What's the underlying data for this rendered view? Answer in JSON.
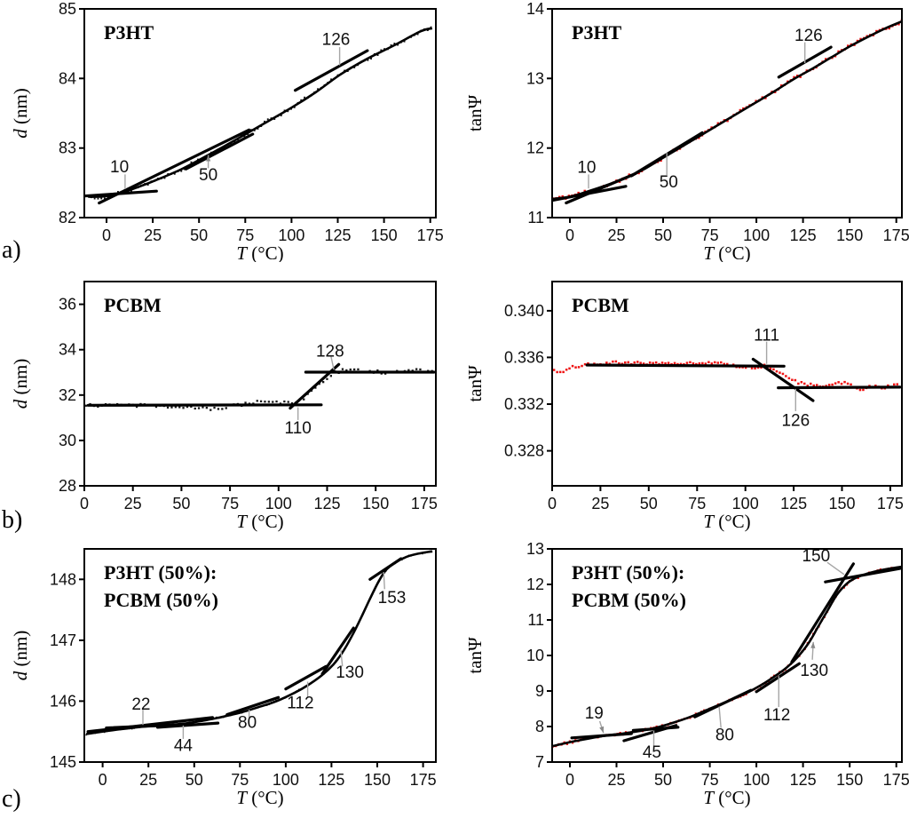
{
  "figure": {
    "row_labels": [
      {
        "text": "a)"
      },
      {
        "text": "b)"
      },
      {
        "text": "c)"
      }
    ]
  },
  "colors": {
    "black_series": "#161616",
    "red_series": "#ee1212",
    "fit_line": "#000000",
    "leader": "#a6a6a6",
    "frame": "#000000"
  },
  "chart_data": [
    {
      "slot": "a-left",
      "type": "scatter",
      "title_lines": [
        "P3HT"
      ],
      "xlabel": {
        "italic": "T",
        "rest": " (°C)"
      },
      "ylabel": {
        "italic": "d",
        "rest": " (nm)"
      },
      "xlim": [
        -12,
        178
      ],
      "ylim": [
        82,
        85
      ],
      "xticks": [
        0,
        25,
        50,
        75,
        100,
        125,
        150,
        175
      ],
      "yticks": [
        82,
        83,
        84,
        85
      ],
      "ytick_decimals": 0,
      "series_color": "#161616",
      "marker_px": 1.9,
      "sample_step": 1.8,
      "noise": 0.03,
      "draw_fit_curve": true,
      "anchors": [
        [
          -10,
          82.3
        ],
        [
          -4,
          82.3
        ],
        [
          0,
          82.31
        ],
        [
          8,
          82.36
        ],
        [
          15,
          82.42
        ],
        [
          25,
          82.52
        ],
        [
          40,
          82.69
        ],
        [
          55,
          82.9
        ],
        [
          70,
          83.12
        ],
        [
          85,
          83.35
        ],
        [
          100,
          83.58
        ],
        [
          113,
          83.8
        ],
        [
          126,
          84.05
        ],
        [
          140,
          84.27
        ],
        [
          155,
          84.47
        ],
        [
          170,
          84.68
        ],
        [
          176,
          84.72
        ]
      ],
      "fit_segments": [
        [
          -12,
          82.31,
          27,
          82.38
        ],
        [
          -4,
          82.21,
          77,
          83.26
        ],
        [
          43,
          82.7,
          79,
          83.2
        ],
        [
          102,
          83.83,
          141,
          84.4
        ]
      ],
      "annotations": [
        {
          "label": "10",
          "tx": 7,
          "ty": 82.73,
          "leader": [
            10,
            82.62,
            10,
            82.41
          ],
          "arrow": false
        },
        {
          "label": "50",
          "tx": 55,
          "ty": 82.61,
          "leader": [
            55,
            82.71,
            55,
            82.9
          ],
          "arrow": true
        },
        {
          "label": "126",
          "tx": 124,
          "ty": 84.56,
          "leader": [
            126,
            84.45,
            126,
            84.19
          ],
          "arrow": false
        }
      ]
    },
    {
      "slot": "a-right",
      "type": "scatter",
      "title_lines": [
        "P3HT"
      ],
      "xlabel": {
        "italic": "T",
        "rest": " (°C)"
      },
      "ylabel": {
        "italic": "",
        "rest": "tanΨ"
      },
      "xlim": [
        -9.5,
        178
      ],
      "ylim": [
        11,
        14
      ],
      "xticks": [
        0,
        25,
        50,
        75,
        100,
        125,
        150,
        175
      ],
      "yticks": [
        11,
        12,
        13,
        14
      ],
      "ytick_decimals": 0,
      "series_color": "#ee1212",
      "marker_px": 2.5,
      "sample_step": 1.7,
      "noise": 0.025,
      "draw_fit_curve": true,
      "anchors": [
        [
          -9,
          11.27
        ],
        [
          0,
          11.3
        ],
        [
          10,
          11.38
        ],
        [
          20,
          11.47
        ],
        [
          30,
          11.57
        ],
        [
          40,
          11.7
        ],
        [
          50,
          11.86
        ],
        [
          60,
          12.02
        ],
        [
          70,
          12.18
        ],
        [
          80,
          12.34
        ],
        [
          90,
          12.5
        ],
        [
          100,
          12.66
        ],
        [
          110,
          12.82
        ],
        [
          120,
          12.99
        ],
        [
          130,
          13.14
        ],
        [
          140,
          13.3
        ],
        [
          150,
          13.46
        ],
        [
          160,
          13.6
        ],
        [
          170,
          13.73
        ],
        [
          178,
          13.82
        ]
      ],
      "fit_segments": [
        [
          -9,
          11.25,
          30,
          11.45
        ],
        [
          -2,
          11.21,
          35,
          11.63
        ],
        [
          33,
          11.6,
          71,
          12.22
        ],
        [
          112,
          13.02,
          140,
          13.45
        ]
      ],
      "annotations": [
        {
          "label": "10",
          "tx": 9,
          "ty": 11.72,
          "leader": [
            10,
            11.62,
            10,
            11.42
          ],
          "arrow": false
        },
        {
          "label": "50",
          "tx": 53,
          "ty": 11.51,
          "leader": [
            52,
            11.61,
            52,
            11.93
          ],
          "arrow": false
        },
        {
          "label": "126",
          "tx": 128,
          "ty": 13.62,
          "leader": [
            126,
            13.52,
            126,
            13.22
          ],
          "arrow": false
        }
      ]
    },
    {
      "slot": "b-left",
      "type": "scatter",
      "title_lines": [
        "PCBM"
      ],
      "xlabel": {
        "italic": "T",
        "rest": " (°C)"
      },
      "ylabel": {
        "italic": "d",
        "rest": " (nm)"
      },
      "xlim": [
        0,
        181
      ],
      "ylim": [
        28,
        37
      ],
      "xticks": [
        0,
        25,
        50,
        75,
        100,
        125,
        150,
        175
      ],
      "yticks": [
        28,
        30,
        32,
        34,
        36
      ],
      "ytick_decimals": 0,
      "series_color": "#161616",
      "marker_px": 2.3,
      "sample_step": 2.0,
      "noise": 0.07,
      "draw_fit_curve": false,
      "anchors": [
        [
          1,
          31.55
        ],
        [
          30,
          31.53
        ],
        [
          50,
          31.5
        ],
        [
          58,
          31.42
        ],
        [
          68,
          31.4
        ],
        [
          78,
          31.55
        ],
        [
          88,
          31.68
        ],
        [
          97,
          31.72
        ],
        [
          104,
          31.65
        ],
        [
          108,
          31.62
        ],
        [
          113,
          31.85
        ],
        [
          118,
          32.25
        ],
        [
          123,
          32.6
        ],
        [
          128,
          32.95
        ],
        [
          133,
          33.08
        ],
        [
          140,
          33.1
        ],
        [
          148,
          33.05
        ],
        [
          155,
          32.97
        ],
        [
          162,
          33.06
        ],
        [
          170,
          33.08
        ],
        [
          179,
          33.02
        ]
      ],
      "fit_segments": [
        [
          2,
          31.55,
          122,
          31.57
        ],
        [
          106,
          31.42,
          131,
          33.35
        ],
        [
          114,
          33.01,
          180,
          33.01
        ]
      ],
      "annotations": [
        {
          "label": "128",
          "tx": 126.5,
          "ty": 33.92,
          "leader": [
            127,
            33.7,
            128.5,
            33.12
          ],
          "arrow": false
        },
        {
          "label": "110",
          "tx": 110,
          "ty": 30.55,
          "leader": [
            110,
            30.9,
            110,
            31.46
          ],
          "arrow": false
        }
      ]
    },
    {
      "slot": "b-right",
      "type": "scatter",
      "title_lines": [
        "PCBM"
      ],
      "xlabel": {
        "italic": "T",
        "rest": " (°C)"
      },
      "ylabel": {
        "italic": "",
        "rest": "tanΨ"
      },
      "xlim": [
        0,
        181
      ],
      "ylim": [
        0.325,
        0.3425
      ],
      "xticks": [
        0,
        25,
        50,
        75,
        100,
        125,
        150,
        175
      ],
      "yticks": [
        0.328,
        0.332,
        0.336,
        0.34
      ],
      "ytick_decimals": 3,
      "series_color": "#ee1212",
      "marker_px": 2.5,
      "sample_step": 1.6,
      "noise": 0.00013,
      "draw_fit_curve": false,
      "anchors": [
        [
          1,
          0.33485
        ],
        [
          4,
          0.3347
        ],
        [
          8,
          0.335
        ],
        [
          12,
          0.3352
        ],
        [
          18,
          0.33535
        ],
        [
          25,
          0.33545
        ],
        [
          35,
          0.33555
        ],
        [
          45,
          0.3355
        ],
        [
          55,
          0.3355
        ],
        [
          65,
          0.33555
        ],
        [
          75,
          0.33545
        ],
        [
          82,
          0.3356
        ],
        [
          88,
          0.3355
        ],
        [
          94,
          0.33525
        ],
        [
          100,
          0.3352
        ],
        [
          106,
          0.33515
        ],
        [
          110,
          0.33525
        ],
        [
          114,
          0.33495
        ],
        [
          118,
          0.33465
        ],
        [
          122,
          0.33425
        ],
        [
          126,
          0.33395
        ],
        [
          130,
          0.3337
        ],
        [
          135,
          0.33365
        ],
        [
          142,
          0.3336
        ],
        [
          148,
          0.33375
        ],
        [
          152,
          0.33395
        ],
        [
          156,
          0.3334
        ],
        [
          160,
          0.3333
        ],
        [
          165,
          0.3335
        ],
        [
          170,
          0.3334
        ],
        [
          175,
          0.33355
        ],
        [
          179,
          0.3336
        ]
      ],
      "fit_segments": [
        [
          18,
          0.33535,
          120,
          0.33525
        ],
        [
          104,
          0.33585,
          135,
          0.3323
        ],
        [
          117,
          0.3334,
          180,
          0.33345
        ]
      ],
      "annotations": [
        {
          "label": "111",
          "tx": 111,
          "ty": 0.3379,
          "leader": [
            111,
            0.33735,
            111,
            0.33545
          ],
          "arrow": false
        },
        {
          "label": "126",
          "tx": 126,
          "ty": 0.3306,
          "leader": [
            126,
            0.3314,
            126,
            0.3333
          ],
          "arrow": false
        }
      ]
    },
    {
      "slot": "c-left",
      "type": "scatter",
      "title_lines": [
        "P3HT (50%):",
        "PCBM (50%)"
      ],
      "xlabel": {
        "italic": "T",
        "rest": " (°C)"
      },
      "ylabel": {
        "italic": "d",
        "rest": " (nm)"
      },
      "xlim": [
        -10,
        182
      ],
      "ylim": [
        145,
        148.5
      ],
      "xticks": [
        0,
        25,
        50,
        75,
        100,
        125,
        150,
        175
      ],
      "yticks": [
        145,
        146,
        147,
        148
      ],
      "ytick_decimals": 0,
      "series_color": "#161616",
      "marker_px": 1.6,
      "sample_step": 1.25,
      "noise": 0.014,
      "draw_fit_curve": true,
      "anchors": [
        [
          -9,
          145.46
        ],
        [
          0,
          145.5
        ],
        [
          10,
          145.54
        ],
        [
          22,
          145.58
        ],
        [
          32,
          145.6
        ],
        [
          44,
          145.63
        ],
        [
          55,
          145.68
        ],
        [
          65,
          145.74
        ],
        [
          75,
          145.81
        ],
        [
          85,
          145.9
        ],
        [
          95,
          146.0
        ],
        [
          105,
          146.14
        ],
        [
          112,
          146.26
        ],
        [
          120,
          146.43
        ],
        [
          126,
          146.6
        ],
        [
          131,
          146.8
        ],
        [
          136,
          147.06
        ],
        [
          141,
          147.36
        ],
        [
          146,
          147.68
        ],
        [
          151,
          147.98
        ],
        [
          155,
          148.16
        ],
        [
          160,
          148.28
        ],
        [
          166,
          148.37
        ],
        [
          172,
          148.42
        ],
        [
          180,
          148.46
        ]
      ],
      "fit_segments": [
        [
          -8,
          145.5,
          60,
          145.73
        ],
        [
          2,
          145.56,
          47,
          145.62
        ],
        [
          30,
          145.57,
          63,
          145.64
        ],
        [
          68,
          145.78,
          96,
          146.06
        ],
        [
          100,
          146.2,
          122,
          146.57
        ],
        [
          120,
          146.45,
          137,
          147.2
        ],
        [
          146,
          148.0,
          163,
          148.34
        ]
      ],
      "annotations": [
        {
          "label": "22",
          "tx": 21,
          "ty": 145.95,
          "leader": [
            22,
            145.86,
            22,
            145.61
          ],
          "arrow": false
        },
        {
          "label": "44",
          "tx": 44,
          "ty": 145.27,
          "leader": [
            44,
            145.38,
            44,
            145.6
          ],
          "arrow": false
        },
        {
          "label": "80",
          "tx": 79,
          "ty": 145.65,
          "leader": [
            80,
            145.73,
            80,
            145.86
          ],
          "arrow": false
        },
        {
          "label": "112",
          "tx": 108,
          "ty": 145.97,
          "leader": [
            112,
            146.05,
            112,
            146.32
          ],
          "arrow": false
        },
        {
          "label": "130",
          "tx": 135,
          "ty": 146.47,
          "leader": [
            131,
            146.57,
            130,
            146.85
          ],
          "arrow": false
        },
        {
          "label": "153",
          "tx": 158,
          "ty": 147.7,
          "leader": [
            154,
            147.84,
            153.5,
            148.12
          ],
          "arrow": false
        }
      ]
    },
    {
      "slot": "c-right",
      "type": "scatter",
      "title_lines": [
        "P3HT (50%):",
        "PCBM (50%)"
      ],
      "xlabel": {
        "italic": "T",
        "rest": " (°C)"
      },
      "ylabel": {
        "italic": "",
        "rest": "tanΨ"
      },
      "xlim": [
        -9.5,
        178
      ],
      "ylim": [
        7,
        13
      ],
      "xticks": [
        0,
        25,
        50,
        75,
        100,
        125,
        150,
        175
      ],
      "yticks": [
        7,
        8,
        9,
        10,
        11,
        12,
        13
      ],
      "ytick_decimals": 0,
      "series_color": "#ee1212",
      "marker_px": 2.3,
      "sample_step": 1.5,
      "noise": 0.035,
      "draw_fit_curve": true,
      "anchors": [
        [
          -9,
          7.45
        ],
        [
          0,
          7.56
        ],
        [
          10,
          7.66
        ],
        [
          19,
          7.74
        ],
        [
          28,
          7.8
        ],
        [
          38,
          7.88
        ],
        [
          45,
          7.95
        ],
        [
          55,
          8.1
        ],
        [
          65,
          8.28
        ],
        [
          75,
          8.5
        ],
        [
          85,
          8.72
        ],
        [
          95,
          8.95
        ],
        [
          103,
          9.18
        ],
        [
          110,
          9.42
        ],
        [
          116,
          9.65
        ],
        [
          122,
          9.95
        ],
        [
          128,
          10.35
        ],
        [
          133,
          10.8
        ],
        [
          138,
          11.25
        ],
        [
          143,
          11.7
        ],
        [
          148,
          12.0
        ],
        [
          152,
          12.15
        ],
        [
          158,
          12.28
        ],
        [
          165,
          12.38
        ],
        [
          172,
          12.45
        ],
        [
          178,
          12.5
        ]
      ],
      "fit_segments": [
        [
          1,
          7.68,
          33,
          7.8
        ],
        [
          29,
          7.6,
          57,
          8.03
        ],
        [
          34,
          7.89,
          58,
          7.98
        ],
        [
          67,
          8.27,
          97,
          9.02
        ],
        [
          100,
          8.98,
          123,
          9.77
        ],
        [
          119,
          9.82,
          152,
          12.58
        ],
        [
          137,
          12.07,
          177,
          12.45
        ]
      ],
      "annotations": [
        {
          "label": "19",
          "tx": 13,
          "ty": 8.37,
          "leader": [
            16,
            8.15,
            18,
            7.82
          ],
          "arrow": true
        },
        {
          "label": "45",
          "tx": 44,
          "ty": 7.28,
          "leader": [
            45,
            7.44,
            45,
            7.88
          ],
          "arrow": false
        },
        {
          "label": "80",
          "tx": 83,
          "ty": 7.76,
          "leader": [
            81,
            7.96,
            80,
            8.56
          ],
          "arrow": false
        },
        {
          "label": "112",
          "tx": 111,
          "ty": 8.32,
          "leader": [
            112,
            8.55,
            112,
            9.42
          ],
          "arrow": false
        },
        {
          "label": "130",
          "tx": 131,
          "ty": 9.58,
          "leader": [
            130,
            9.88,
            130.5,
            10.38
          ],
          "arrow": true
        },
        {
          "label": "150",
          "tx": 132,
          "ty": 12.8,
          "leader": [
            138,
            12.62,
            147,
            12.28
          ],
          "arrow": false
        }
      ]
    }
  ]
}
